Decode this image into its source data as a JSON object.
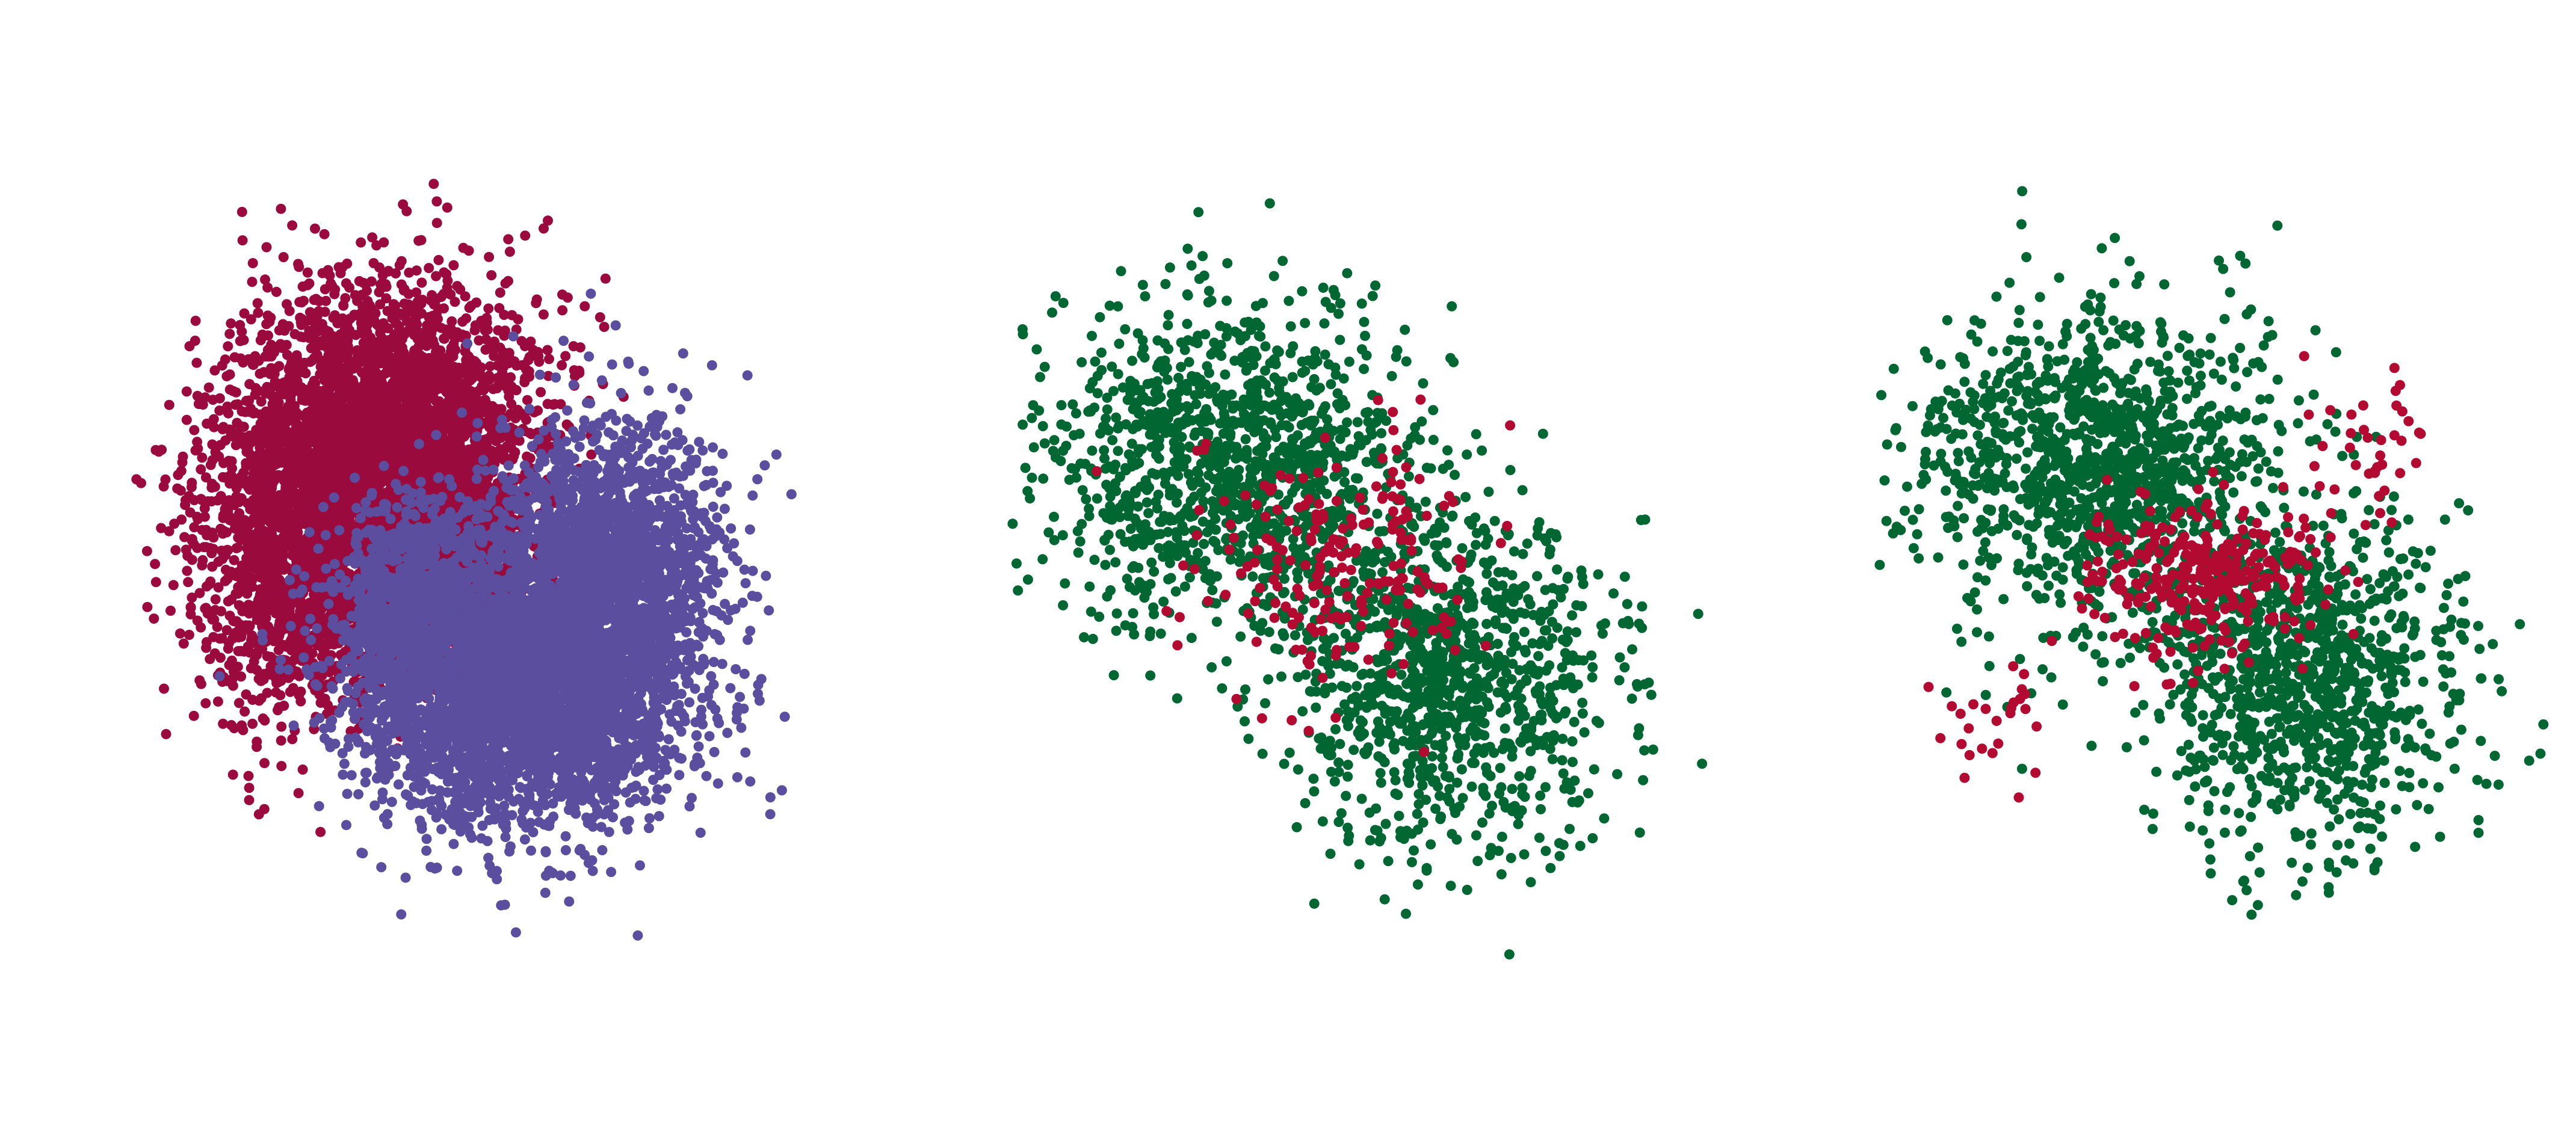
{
  "chart_data": [
    {
      "type": "scatter",
      "xlim": [
        -4.5,
        5
      ],
      "ylim": [
        -6.5,
        6.5
      ],
      "grid": false,
      "axes": "hidden",
      "series": [
        {
          "color": "#9b0a3c",
          "count": 6000,
          "clusters": [
            {
              "cx": -1.0,
              "cy": 2.2,
              "sx": 1.0,
              "sy": 1.1,
              "weight": 0.45
            },
            {
              "cx": -2.1,
              "cy": 0.4,
              "sx": 0.8,
              "sy": 1.2,
              "weight": 0.3
            },
            {
              "cx": -0.3,
              "cy": 0.6,
              "sx": 0.6,
              "sy": 1.0,
              "weight": 0.25
            }
          ]
        },
        {
          "color": "#5b4e9e",
          "count": 6000,
          "clusters": [
            {
              "cx": 0.8,
              "cy": -1.6,
              "sx": 1.1,
              "sy": 1.0,
              "weight": 0.55
            },
            {
              "cx": 1.9,
              "cy": 0.2,
              "sx": 0.8,
              "sy": 1.1,
              "weight": 0.3
            },
            {
              "cx": -0.6,
              "cy": -0.3,
              "sx": 0.6,
              "sy": 0.8,
              "weight": 0.15
            }
          ]
        }
      ]
    },
    {
      "type": "scatter",
      "xlim": [
        -4.5,
        5
      ],
      "ylim": [
        -6.5,
        6.5
      ],
      "grid": false,
      "axes": "hidden",
      "series": [
        {
          "color": "#006632",
          "count": 2300,
          "clusters": [
            {
              "cx": -1.4,
              "cy": 1.7,
              "sx": 1.3,
              "sy": 1.2,
              "weight": 0.55
            },
            {
              "cx": 1.5,
              "cy": -1.4,
              "sx": 1.1,
              "sy": 1.2,
              "weight": 0.45
            }
          ]
        },
        {
          "color": "#b30a32",
          "count": 220,
          "clusters": [
            {
              "cx": 0.0,
              "cy": 0.3,
              "sx": 0.9,
              "sy": 0.9,
              "weight": 1.0
            }
          ]
        }
      ]
    },
    {
      "type": "scatter",
      "xlim": [
        -4.5,
        5
      ],
      "ylim": [
        -6.5,
        6.5
      ],
      "grid": false,
      "axes": "hidden",
      "series": [
        {
          "color": "#006632",
          "count": 2300,
          "clusters": [
            {
              "cx": -1.4,
              "cy": 1.7,
              "sx": 1.3,
              "sy": 1.2,
              "weight": 0.55
            },
            {
              "cx": 1.5,
              "cy": -1.4,
              "sx": 1.1,
              "sy": 1.2,
              "weight": 0.45
            }
          ]
        },
        {
          "color": "#b30a32",
          "count": 380,
          "clusters": [
            {
              "cx": 0.2,
              "cy": 0.1,
              "sx": 0.9,
              "sy": 0.6,
              "weight": 0.85
            },
            {
              "cx": 2.4,
              "cy": 2.0,
              "sx": 0.4,
              "sy": 0.5,
              "weight": 0.08
            },
            {
              "cx": -3.0,
              "cy": -2.0,
              "sx": 0.5,
              "sy": 0.4,
              "weight": 0.07
            }
          ]
        }
      ]
    }
  ]
}
